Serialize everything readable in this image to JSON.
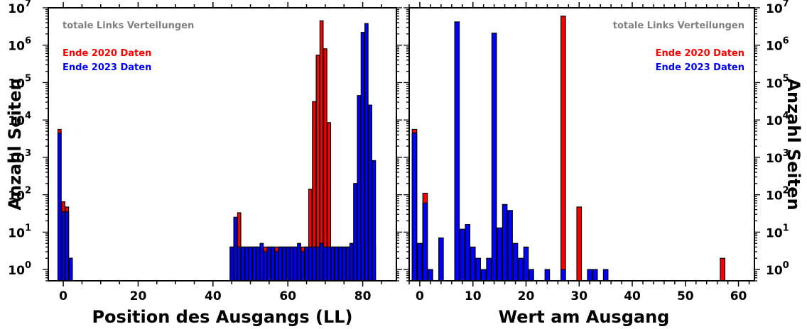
{
  "chart_data": [
    {
      "type": "bar",
      "xlabel": "Position des Ausgangs (LL)",
      "ylabel": "Anzahl Seiten",
      "annotation": "totale Links Verteilungen",
      "xlim": [
        -4,
        89
      ],
      "ylim": [
        0.5,
        10000000
      ],
      "yscale": "log",
      "x_ticks": [
        0,
        20,
        40,
        60,
        80
      ],
      "y_ticks": [
        {
          "value": 1,
          "mant": "10",
          "exp": "0"
        },
        {
          "value": 10,
          "mant": "10",
          "exp": "1"
        },
        {
          "value": 100,
          "mant": "10",
          "exp": "2"
        },
        {
          "value": 1000,
          "mant": "10",
          "exp": "3"
        },
        {
          "value": 10000,
          "mant": "10",
          "exp": "4"
        },
        {
          "value": 100000,
          "mant": "10",
          "exp": "5"
        },
        {
          "value": 1000000,
          "mant": "10",
          "exp": "6"
        },
        {
          "value": 10000000,
          "mant": "10",
          "exp": "7"
        }
      ],
      "legend_placement": "top-left",
      "series": [
        {
          "name": "Ende 2020 Daten",
          "color": "#ff0000",
          "x": [
            -1,
            0,
            1,
            2,
            45,
            46,
            47,
            48,
            49,
            50,
            51,
            52,
            53,
            54,
            55,
            56,
            57,
            58,
            59,
            60,
            61,
            62,
            63,
            64,
            65,
            66,
            67,
            68,
            69,
            70,
            71,
            72,
            73,
            74,
            75,
            76,
            77,
            78,
            79,
            80,
            81,
            82,
            83
          ],
          "values": [
            5600,
            65,
            47,
            2,
            4,
            25,
            33,
            4,
            4,
            4,
            4,
            4,
            4,
            4,
            4,
            4,
            4,
            4,
            4,
            4,
            4,
            4,
            4,
            4,
            4,
            140,
            31000,
            540000,
            4500000,
            800000,
            8500,
            4,
            4,
            4,
            4,
            4,
            4,
            4,
            4,
            4,
            4,
            4,
            4
          ]
        },
        {
          "name": "Ende 2023 Daten",
          "color": "#0000ff",
          "x": [
            -1,
            0,
            1,
            2,
            45,
            46,
            47,
            48,
            49,
            50,
            51,
            52,
            53,
            54,
            55,
            56,
            57,
            58,
            59,
            60,
            61,
            62,
            63,
            64,
            65,
            66,
            67,
            68,
            69,
            70,
            71,
            72,
            73,
            74,
            75,
            76,
            77,
            78,
            79,
            80,
            81,
            82,
            83
          ],
          "values": [
            4500,
            35,
            35,
            2,
            4,
            25,
            4,
            4,
            4,
            4,
            4,
            4,
            5,
            3,
            4,
            4,
            3,
            4,
            4,
            4,
            4,
            4,
            5,
            3,
            4,
            4,
            4,
            4,
            5,
            4,
            4,
            4,
            4,
            4,
            4,
            4,
            5,
            200,
            45000,
            2200000,
            3800000,
            25000,
            820
          ]
        }
      ]
    },
    {
      "type": "bar",
      "xlabel": "Wert am Ausgang",
      "ylabel": "Anzahl Seiten",
      "annotation": "totale Links Verteilungen",
      "xlim": [
        -2,
        63
      ],
      "ylim": [
        0.5,
        10000000
      ],
      "yscale": "log",
      "x_ticks": [
        0,
        10,
        20,
        30,
        40,
        50,
        60
      ],
      "y_ticks": [
        {
          "value": 1,
          "mant": "10",
          "exp": "0"
        },
        {
          "value": 10,
          "mant": "10",
          "exp": "1"
        },
        {
          "value": 100,
          "mant": "10",
          "exp": "2"
        },
        {
          "value": 1000,
          "mant": "10",
          "exp": "3"
        },
        {
          "value": 10000,
          "mant": "10",
          "exp": "4"
        },
        {
          "value": 100000,
          "mant": "10",
          "exp": "5"
        },
        {
          "value": 1000000,
          "mant": "10",
          "exp": "6"
        },
        {
          "value": 10000000,
          "mant": "10",
          "exp": "7"
        }
      ],
      "legend_placement": "top-right",
      "series": [
        {
          "name": "Ende 2020 Daten",
          "color": "#ff0000",
          "x": [
            -1,
            1,
            27,
            30,
            57
          ],
          "values": [
            5600,
            110,
            6000000,
            47,
            2
          ]
        },
        {
          "name": "Ende 2023 Daten",
          "color": "#0000ff",
          "x": [
            -1,
            0,
            1,
            2,
            4,
            7,
            8,
            9,
            10,
            11,
            12,
            13,
            14,
            15,
            16,
            17,
            18,
            19,
            20,
            21,
            24,
            27,
            32,
            33,
            35
          ],
          "values": [
            4500,
            5,
            60,
            1,
            7,
            4200000,
            12,
            16,
            4,
            2,
            1,
            2,
            2100000,
            13,
            55,
            38,
            5,
            2,
            4,
            1,
            1,
            1,
            1,
            1,
            1
          ]
        }
      ]
    }
  ]
}
